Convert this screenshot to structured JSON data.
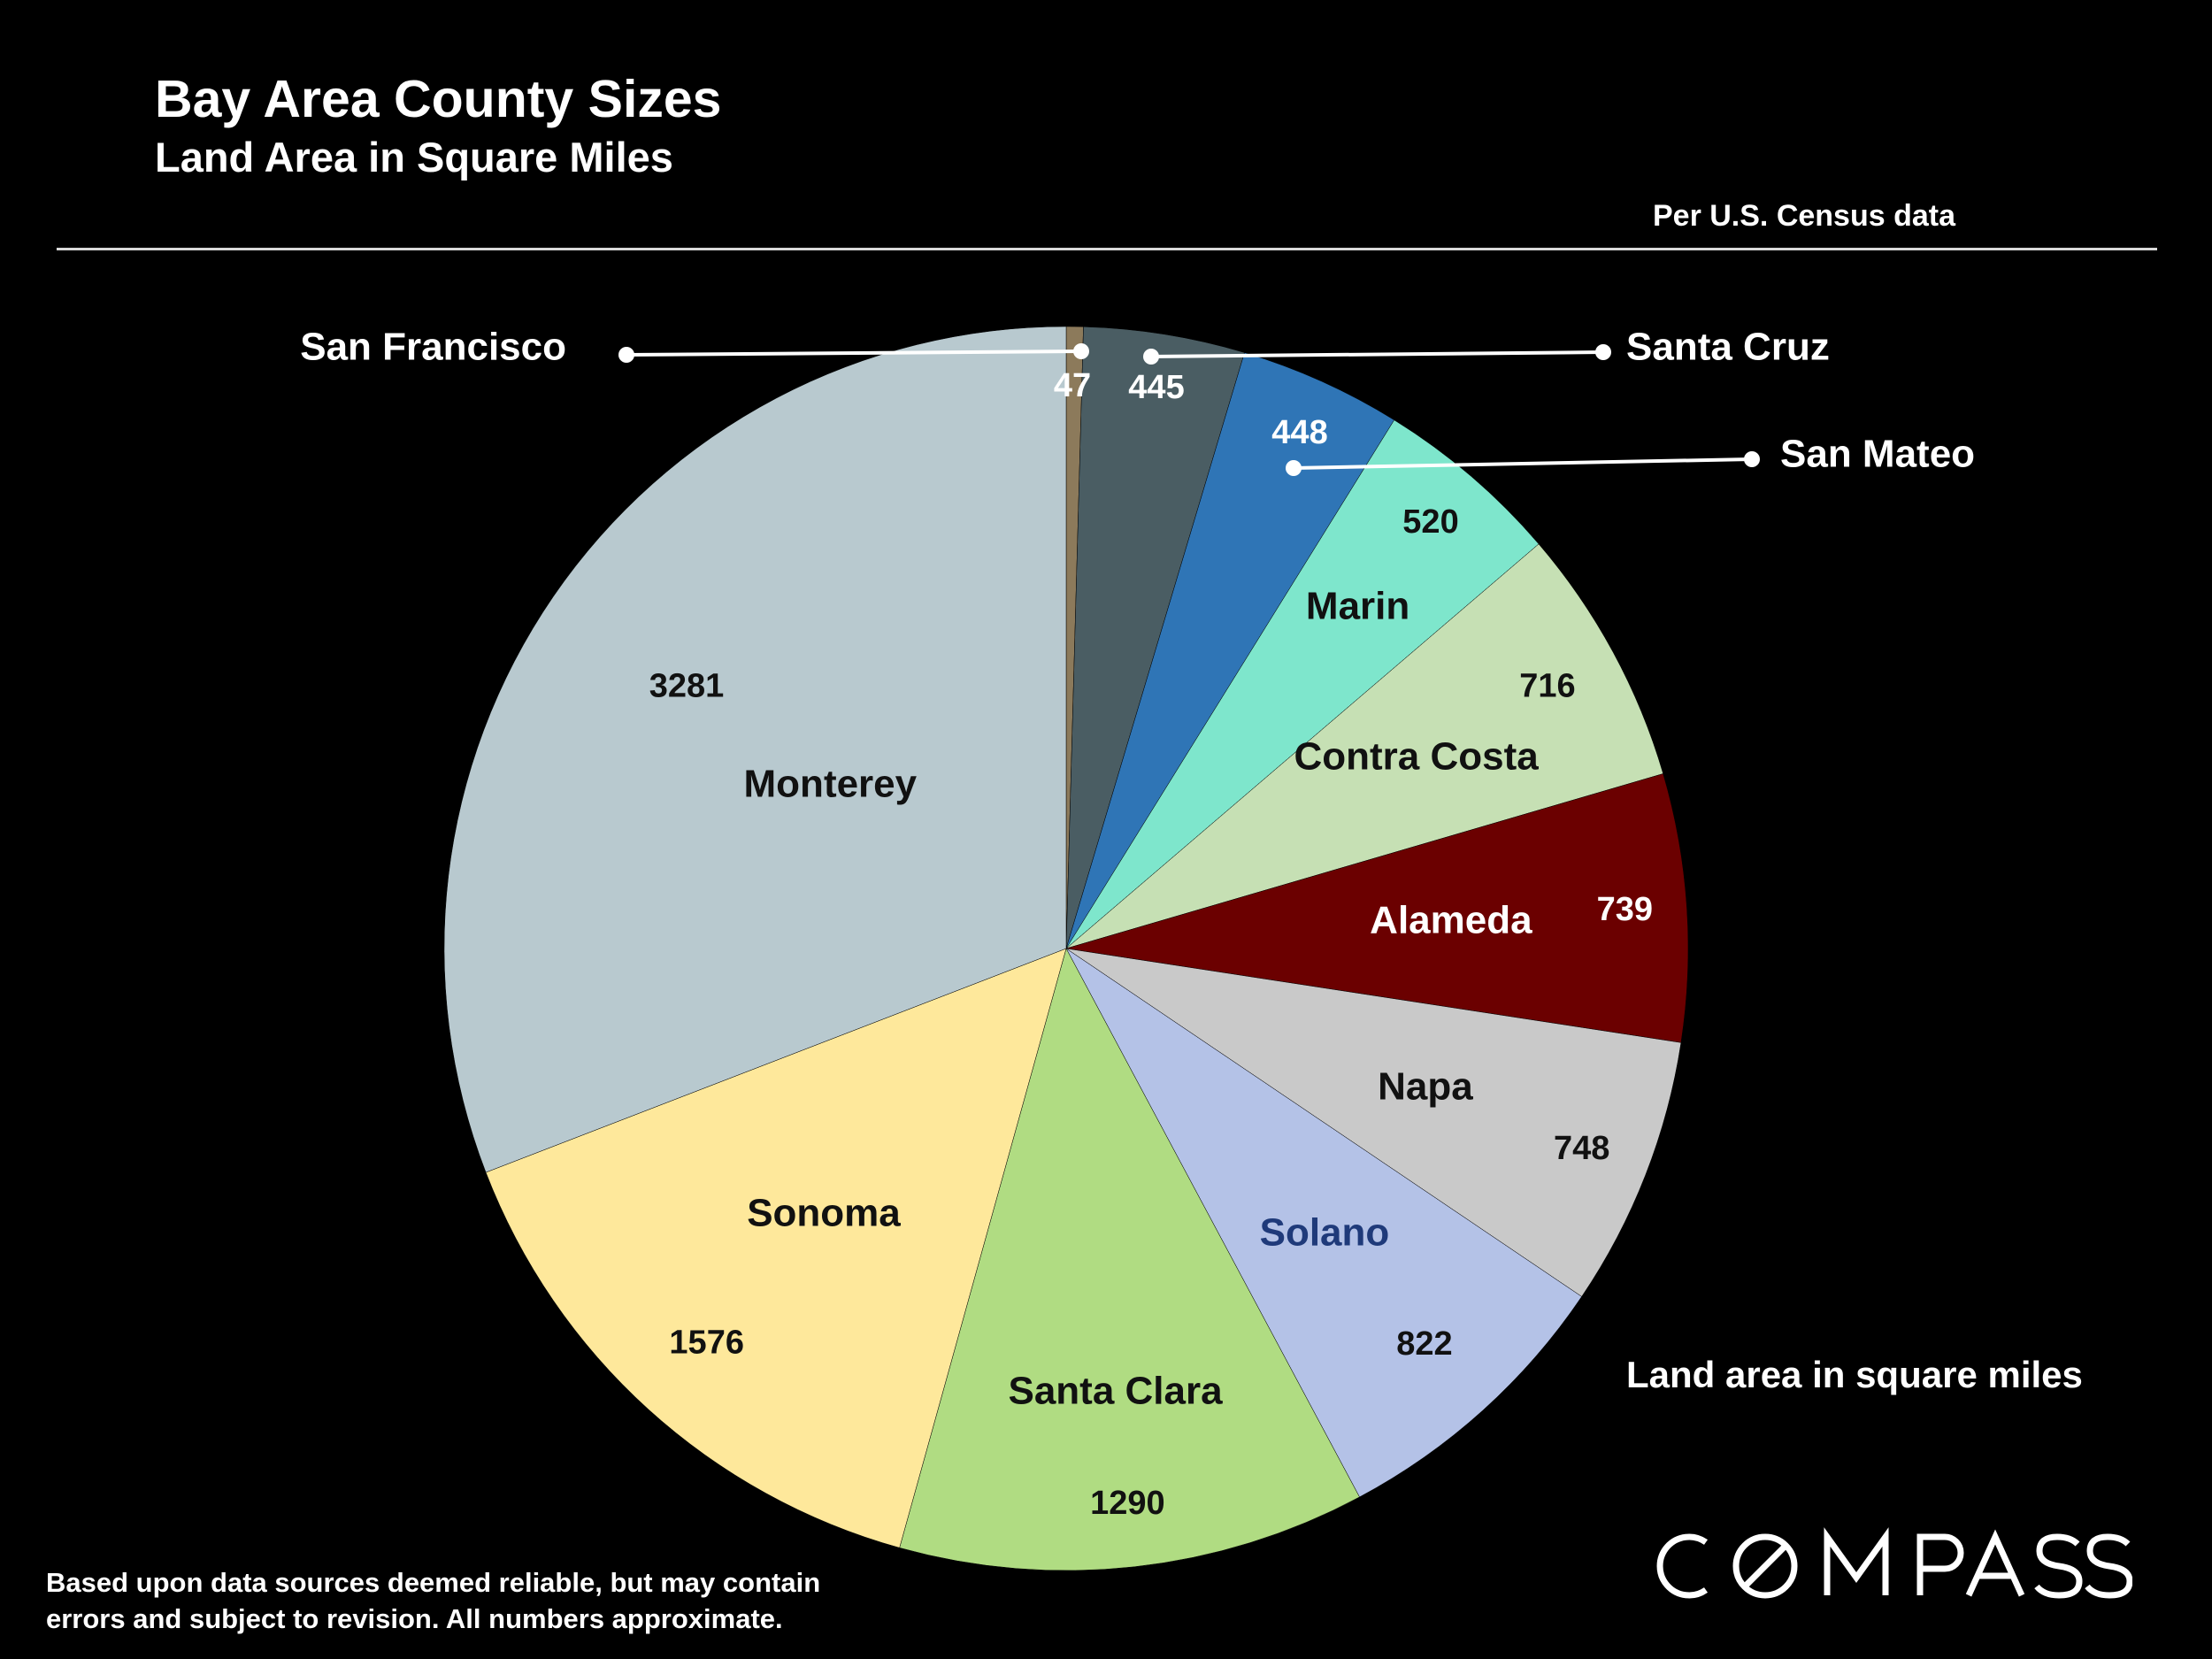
{
  "title": "Bay Area County Sizes",
  "subtitle": "Land Area in Square Miles",
  "source_note": "Per U.S. Census data",
  "legend_note": "Land area in square miles",
  "disclaimer": {
    "line1": "Based upon data sources deemed reliable, but may contain",
    "line2": "errors and subject to revision. All numbers  approximate."
  },
  "logo": {
    "text": "COMPASS",
    "letters": [
      "C",
      "O",
      "M",
      "P",
      "A",
      "S",
      "S"
    ]
  },
  "chart_data": {
    "type": "pie",
    "start_angle_deg": 0,
    "direction": "clockwise",
    "slices": [
      {
        "label": "San Francisco",
        "value": 47,
        "color": "#8c7a5b",
        "label_color": "#ffffff",
        "value_color": "#ffffff"
      },
      {
        "label": "Santa Cruz",
        "value": 445,
        "color": "#4a5d63",
        "label_color": "#ffffff",
        "value_color": "#ffffff"
      },
      {
        "label": "San Mateo",
        "value": 448,
        "color": "#2f75b6",
        "label_color": "#ffffff",
        "value_color": "#ffffff"
      },
      {
        "label": "Marin",
        "value": 520,
        "color": "#7ee6cc",
        "label_color": "#111111",
        "value_color": "#111111"
      },
      {
        "label": "Contra Costa",
        "value": 716,
        "color": "#c6e0b4",
        "label_color": "#111111",
        "value_color": "#111111"
      },
      {
        "label": "Alameda",
        "value": 739,
        "color": "#6b0000",
        "label_color": "#ffffff",
        "value_color": "#ffffff"
      },
      {
        "label": "Napa",
        "value": 748,
        "color": "#c9c9c9",
        "label_color": "#111111",
        "value_color": "#111111"
      },
      {
        "label": "Solano",
        "value": 822,
        "color": "#b4c2e7",
        "label_color": "#1f3a7a",
        "value_color": "#111111"
      },
      {
        "label": "Santa Clara",
        "value": 1290,
        "color": "#b0dc82",
        "label_color": "#111111",
        "value_color": "#111111"
      },
      {
        "label": "Sonoma",
        "value": 1576,
        "color": "#fee89b",
        "label_color": "#111111",
        "value_color": "#111111"
      },
      {
        "label": "Monterey",
        "value": 3281,
        "color": "#b8c9cf",
        "label_color": "#111111",
        "value_color": "#111111"
      }
    ]
  }
}
